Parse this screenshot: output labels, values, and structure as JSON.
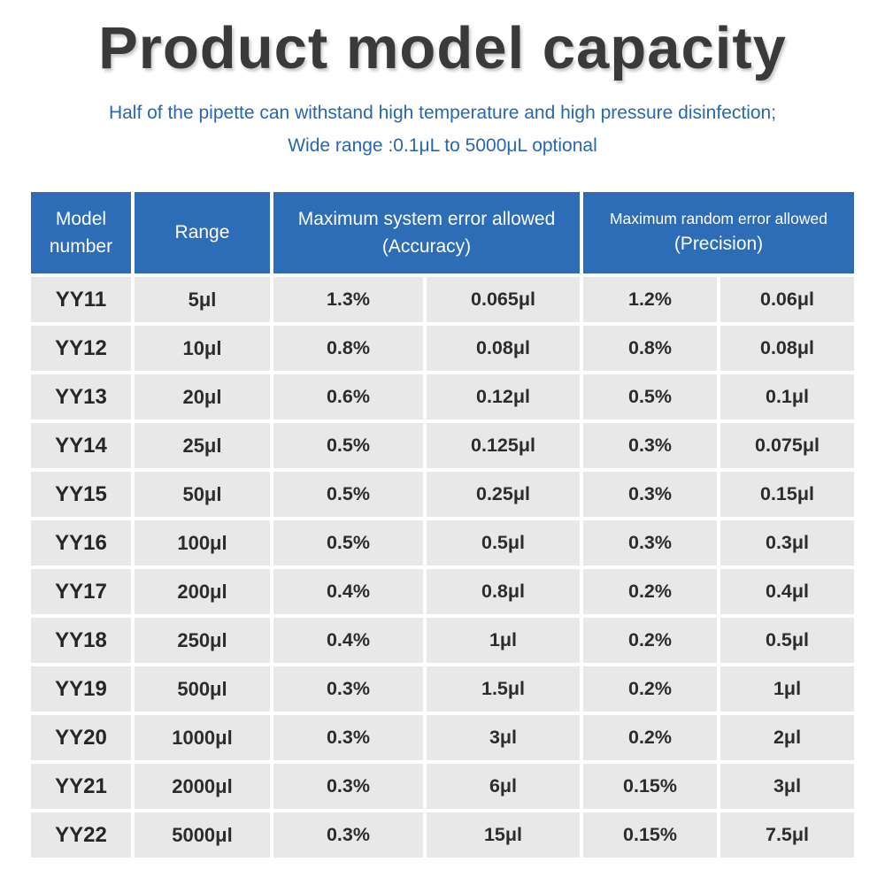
{
  "header": {
    "title": "Product model capacity",
    "subtitle_line1": "Half of the pipette can withstand high temperature and high pressure disinfection;",
    "subtitle_line2": "Wide range :0.1μL to 5000μL optional"
  },
  "colors": {
    "table_header_blue": "#2d6cb6",
    "subtitle_blue": "#2767af",
    "title_gray": "#3a3a3a",
    "cell_gray": "#e8e8e8",
    "cell_text": "#2c2c2c"
  },
  "table": {
    "columns": {
      "model": "Model number",
      "range": "Range",
      "accuracy_line1": "Maximum system error allowed",
      "accuracy_line2": "(Accuracy)",
      "precision_line1": "Maximum random error allowed",
      "precision_line2": "(Precision)"
    },
    "rows": [
      {
        "model": "YY11",
        "range": "5μl",
        "acc_pct": "1.3%",
        "acc_vol": "0.065μl",
        "prec_pct": "1.2%",
        "prec_vol": "0.06μl"
      },
      {
        "model": "YY12",
        "range": "10μl",
        "acc_pct": "0.8%",
        "acc_vol": "0.08μl",
        "prec_pct": "0.8%",
        "prec_vol": "0.08μl"
      },
      {
        "model": "YY13",
        "range": "20μl",
        "acc_pct": "0.6%",
        "acc_vol": "0.12μl",
        "prec_pct": "0.5%",
        "prec_vol": "0.1μl"
      },
      {
        "model": "YY14",
        "range": "25μl",
        "acc_pct": "0.5%",
        "acc_vol": "0.125μl",
        "prec_pct": "0.3%",
        "prec_vol": "0.075μl"
      },
      {
        "model": "YY15",
        "range": "50μl",
        "acc_pct": "0.5%",
        "acc_vol": "0.25μl",
        "prec_pct": "0.3%",
        "prec_vol": "0.15μl"
      },
      {
        "model": "YY16",
        "range": "100μl",
        "acc_pct": "0.5%",
        "acc_vol": "0.5μl",
        "prec_pct": "0.3%",
        "prec_vol": "0.3μl"
      },
      {
        "model": "YY17",
        "range": "200μl",
        "acc_pct": "0.4%",
        "acc_vol": "0.8μl",
        "prec_pct": "0.2%",
        "prec_vol": "0.4μl"
      },
      {
        "model": "YY18",
        "range": "250μl",
        "acc_pct": "0.4%",
        "acc_vol": "1μl",
        "prec_pct": "0.2%",
        "prec_vol": "0.5μl"
      },
      {
        "model": "YY19",
        "range": "500μl",
        "acc_pct": "0.3%",
        "acc_vol": "1.5μl",
        "prec_pct": "0.2%",
        "prec_vol": "1μl"
      },
      {
        "model": "YY20",
        "range": "1000μl",
        "acc_pct": "0.3%",
        "acc_vol": "3μl",
        "prec_pct": "0.2%",
        "prec_vol": "2μl"
      },
      {
        "model": "YY21",
        "range": "2000μl",
        "acc_pct": "0.3%",
        "acc_vol": "6μl",
        "prec_pct": "0.15%",
        "prec_vol": "3μl"
      },
      {
        "model": "YY22",
        "range": "5000μl",
        "acc_pct": "0.3%",
        "acc_vol": "15μl",
        "prec_pct": "0.15%",
        "prec_vol": "7.5μl"
      }
    ]
  }
}
